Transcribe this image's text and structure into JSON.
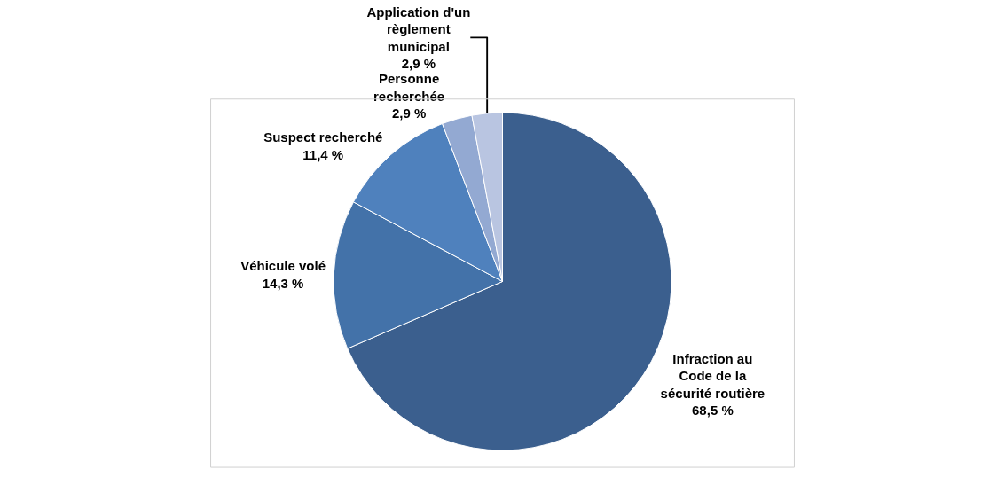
{
  "chart_data": {
    "type": "pie",
    "categories": [
      "Infraction au Code de la sécurité routière",
      "Véhicule volé",
      "Suspect recherché",
      "Personne recherchée",
      "Application d'un règlement municipal"
    ],
    "values": [
      68.5,
      14.3,
      11.4,
      2.9,
      2.9
    ],
    "value_labels": [
      "68,5 %",
      "14,3 %",
      "11,4 %",
      "2,9 %",
      "2,9 %"
    ],
    "colors": [
      "#3b5f8e",
      "#4372a9",
      "#4f81bd",
      "#93a9d2",
      "#b9c5e1"
    ]
  }
}
